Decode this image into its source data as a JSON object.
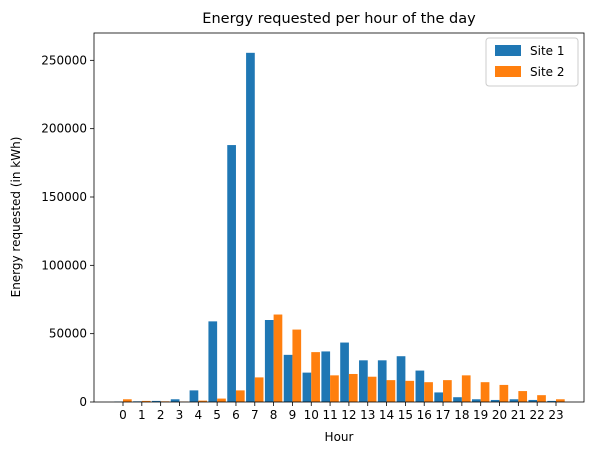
{
  "chart_data": {
    "type": "bar",
    "title": "Energy requested per hour of the day",
    "xlabel": "Hour",
    "ylabel": "Energy requested (in kWh)",
    "categories": [
      "0",
      "1",
      "2",
      "3",
      "4",
      "5",
      "6",
      "7",
      "8",
      "9",
      "10",
      "11",
      "12",
      "13",
      "14",
      "15",
      "16",
      "17",
      "18",
      "19",
      "20",
      "21",
      "22",
      "23"
    ],
    "ylim": [
      0,
      270000
    ],
    "yticks": [
      0,
      50000,
      100000,
      150000,
      200000,
      250000
    ],
    "grid": false,
    "legend": "top-right",
    "series": [
      {
        "name": "Site 1",
        "color": "#1f77b4",
        "values": [
          300,
          500,
          800,
          2000,
          8500,
          59000,
          188000,
          255500,
          60000,
          34500,
          21500,
          37000,
          43500,
          30500,
          30500,
          33500,
          23000,
          7000,
          3500,
          2000,
          1500,
          2000,
          1500,
          800
        ]
      },
      {
        "name": "Site 2",
        "color": "#ff7f0e",
        "values": [
          2000,
          800,
          500,
          300,
          1000,
          2500,
          8500,
          18000,
          64000,
          53000,
          36500,
          19500,
          20500,
          18500,
          16000,
          15500,
          14500,
          16000,
          19500,
          14500,
          12500,
          8000,
          5000,
          2000
        ]
      }
    ]
  }
}
